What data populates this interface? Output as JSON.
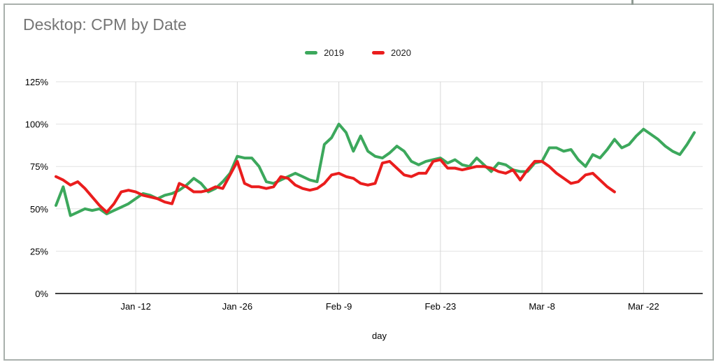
{
  "window": {
    "frame_border_color": "#a9b0ac",
    "background": "#ffffff"
  },
  "chart_data": {
    "type": "line",
    "title": "Desktop: CPM by Date",
    "title_color": "#757575",
    "xlabel": "day",
    "ylabel": "",
    "values_unit": "percent",
    "ylim": [
      0,
      125
    ],
    "y_tick_step": 25,
    "y_tick_labels": [
      "0%",
      "25%",
      "50%",
      "75%",
      "100%",
      "125%"
    ],
    "grid": true,
    "legend_position": "top-center",
    "x_unit": "daily points; index 0 = Jan 1",
    "x_ticks": [
      {
        "index": 11,
        "label": "Jan -12"
      },
      {
        "index": 25,
        "label": "Jan -26"
      },
      {
        "index": 39,
        "label": "Feb -9"
      },
      {
        "index": 53,
        "label": "Feb -23"
      },
      {
        "index": 67,
        "label": "Mar -8"
      },
      {
        "index": 81,
        "label": "Mar -22"
      }
    ],
    "series": [
      {
        "name": "2019",
        "color": "#3ca85c",
        "values": [
          52,
          63,
          46,
          48,
          50,
          49,
          50,
          47,
          49,
          51,
          53,
          56,
          59,
          58,
          56,
          58,
          59,
          61,
          64,
          68,
          65,
          60,
          62,
          66,
          71,
          81,
          80,
          80,
          75,
          66,
          65,
          67,
          69,
          71,
          69,
          67,
          66,
          88,
          92,
          100,
          95,
          84,
          93,
          84,
          81,
          80,
          83,
          87,
          84,
          78,
          76,
          78,
          79,
          80,
          77,
          79,
          76,
          75,
          80,
          76,
          72,
          77,
          76,
          73,
          72,
          72,
          77,
          78,
          86,
          86,
          84,
          85,
          79,
          75,
          82,
          80,
          85,
          91,
          86,
          88,
          93,
          97,
          94,
          91,
          87,
          84,
          82,
          88,
          95
        ]
      },
      {
        "name": "2020",
        "color": "#ea1d1d",
        "values": [
          69,
          67,
          64,
          66,
          62,
          57,
          52,
          48,
          53,
          60,
          61,
          60,
          58,
          57,
          56,
          54,
          53,
          65,
          63,
          60,
          60,
          61,
          63,
          62,
          70,
          78,
          65,
          63,
          63,
          62,
          63,
          69,
          68,
          64,
          62,
          61,
          62,
          65,
          70,
          71,
          69,
          68,
          65,
          64,
          65,
          77,
          78,
          74,
          70,
          69,
          71,
          71,
          78,
          79,
          74,
          74,
          73,
          74,
          75,
          75,
          74,
          72,
          71,
          73,
          67,
          73,
          78,
          78,
          75,
          71,
          68,
          65,
          66,
          70,
          71,
          67,
          63,
          60
        ]
      }
    ],
    "axis_colors": {
      "h_gridline": "#e2e2e2",
      "v_gridline": "#d6d6d6",
      "baseline": "#424242",
      "tick_text": "#000000"
    }
  }
}
